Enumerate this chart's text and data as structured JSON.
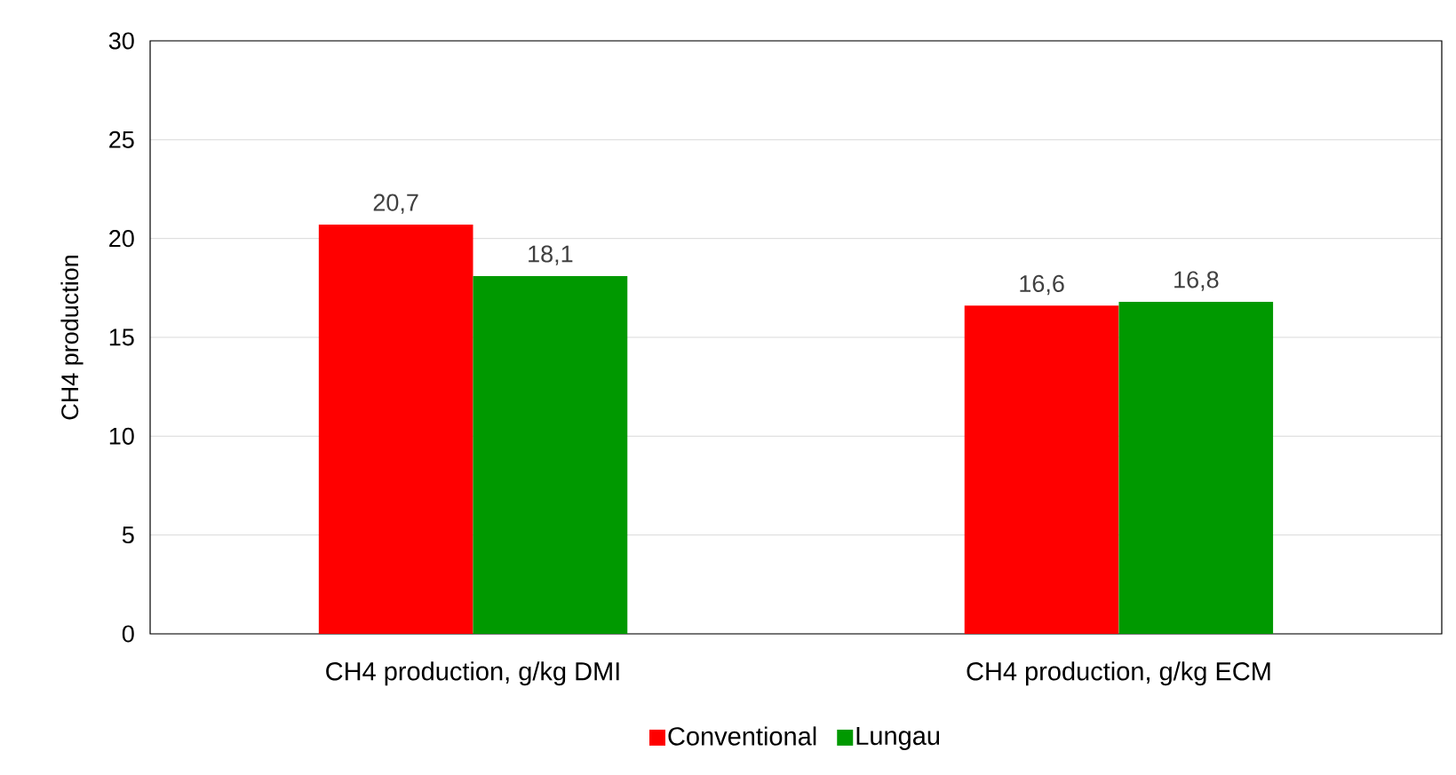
{
  "chart_data": {
    "type": "bar",
    "ylabel": "CH4 production",
    "categories": [
      "CH4 production, g/kg DMI",
      "CH4 production, g/kg ECM"
    ],
    "series": [
      {
        "name": "Conventional",
        "color": "#ff0000",
        "values": [
          20.7,
          16.6
        ],
        "value_labels": [
          "20,7",
          "16,6"
        ]
      },
      {
        "name": "Lungau",
        "color": "#009900",
        "values": [
          18.1,
          16.8
        ],
        "value_labels": [
          "18,1",
          "16,8"
        ]
      }
    ],
    "ylim": [
      0,
      30
    ],
    "yticks": [
      0,
      5,
      10,
      15,
      20,
      25,
      30
    ],
    "grid": "y",
    "legend": "bottom"
  }
}
